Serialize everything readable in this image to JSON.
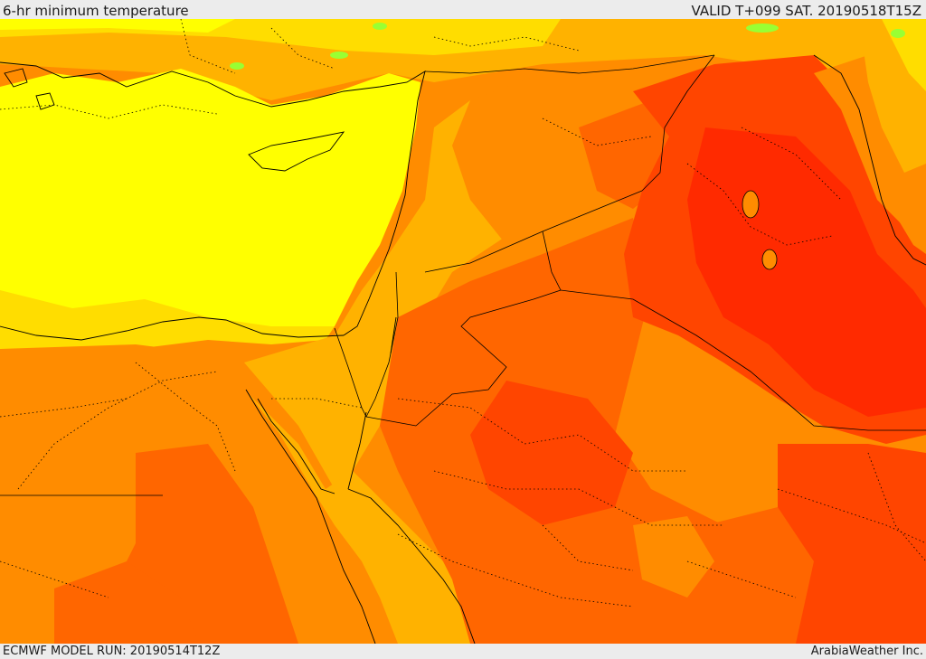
{
  "header": {
    "title": "6-hr minimum temperature",
    "valid": "VALID T+099 SAT. 20190518T15Z"
  },
  "footer": {
    "model_run": "ECMWF MODEL RUN: 20190514T12Z",
    "credit": "ArabiaWeather Inc."
  },
  "map": {
    "palette": {
      "yellow": "#ffff00",
      "gold": "#ffdd00",
      "light_orange": "#ffb200",
      "orange": "#ff8c00",
      "dark_orange": "#ff6600",
      "red_orange": "#ff4500",
      "red": "#ff2a00",
      "green": "#99ff33",
      "border": "#000000"
    }
  }
}
